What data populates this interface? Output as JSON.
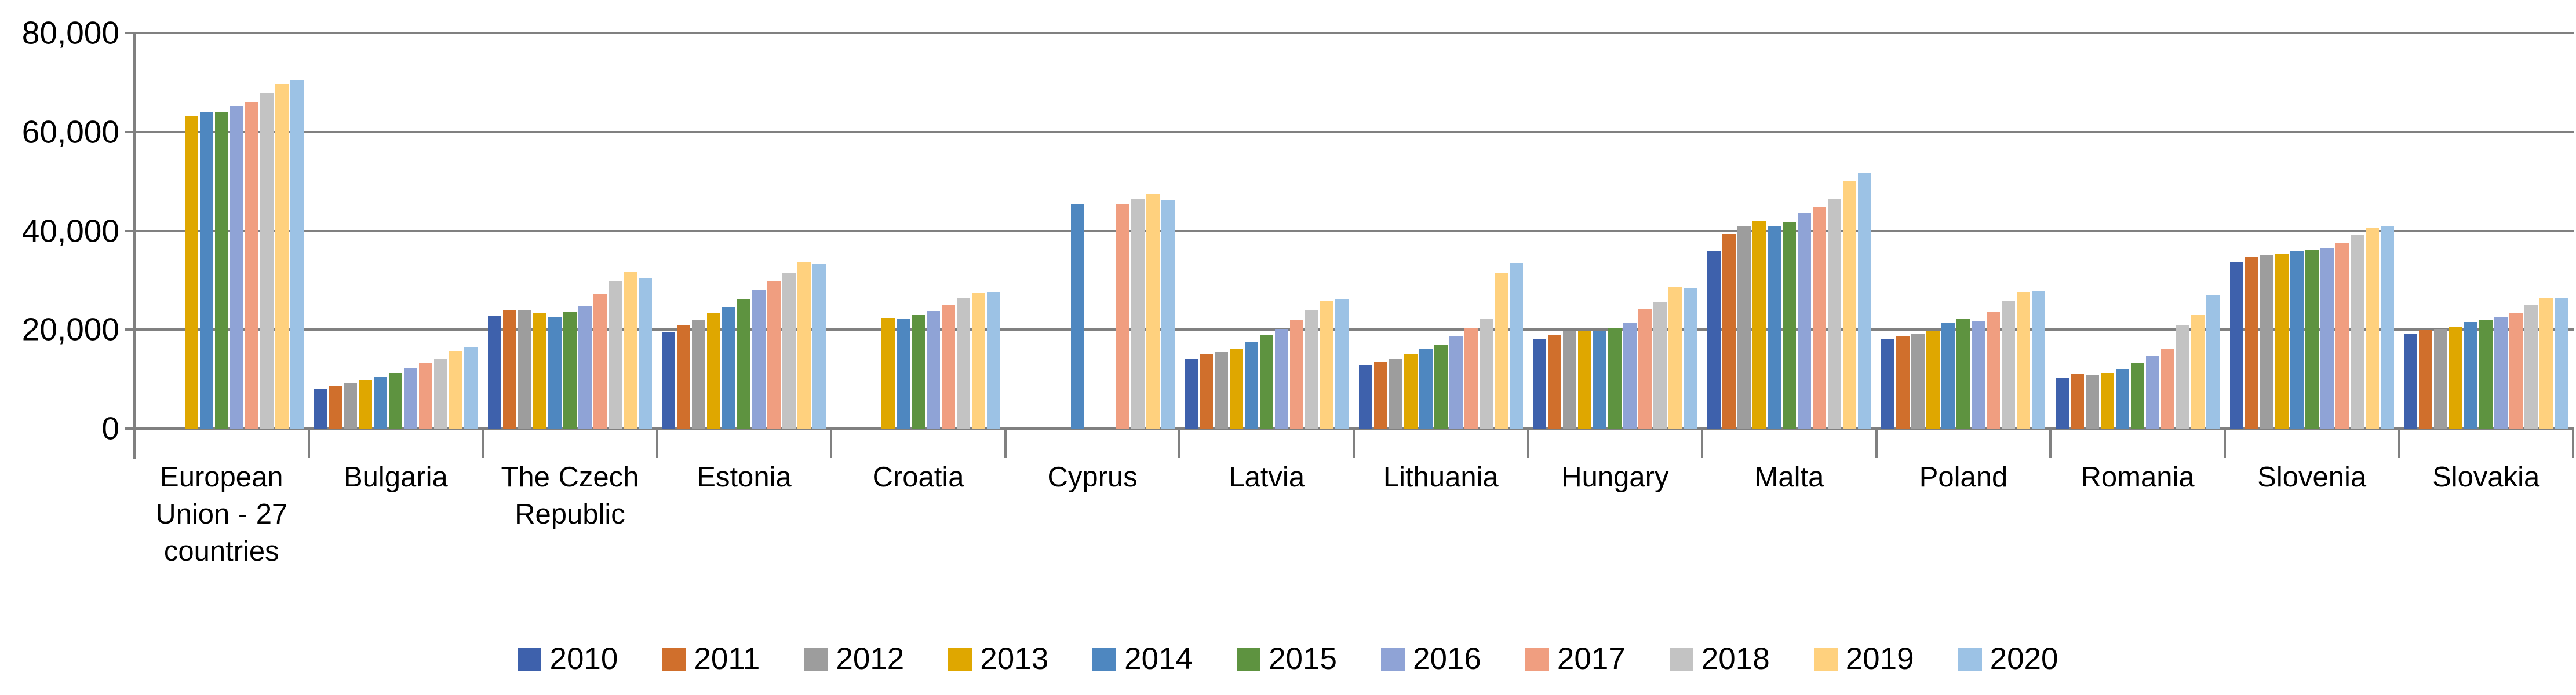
{
  "chart_data": {
    "type": "bar",
    "title": "",
    "xlabel": "",
    "ylabel": "",
    "ylim": [
      0,
      80000
    ],
    "grid": true,
    "gridline_color": "#808080",
    "background_color": "#ffffff",
    "legend_position": "bottom",
    "yticks": [
      {
        "value": 0,
        "label": "0"
      },
      {
        "value": 20000,
        "label": "20,000"
      },
      {
        "value": 40000,
        "label": "40,000"
      },
      {
        "value": 60000,
        "label": "60,000"
      },
      {
        "value": 80000,
        "label": "80,000"
      }
    ],
    "categories": [
      "European Union - 27 countries",
      "Bulgaria",
      "The Czech Republic",
      "Estonia",
      "Croatia",
      "Cyprus",
      "Latvia",
      "Lithuania",
      "Hungary",
      "Malta",
      "Poland",
      "Romania",
      "Slovenia",
      "Slovakia"
    ],
    "series": [
      {
        "name": "2010",
        "color": "#3E61AC",
        "values": [
          null,
          8000,
          22800,
          19500,
          null,
          null,
          14200,
          12900,
          18200,
          35900,
          18100,
          10300,
          33700,
          19200
        ]
      },
      {
        "name": "2011",
        "color": "#D06F2C",
        "values": [
          null,
          8600,
          24000,
          20800,
          null,
          null,
          15000,
          13500,
          18900,
          39400,
          18700,
          11100,
          34700,
          19900
        ]
      },
      {
        "name": "2012",
        "color": "#9D9D9D",
        "values": [
          null,
          9100,
          24000,
          22000,
          null,
          null,
          15500,
          14200,
          19800,
          40900,
          19200,
          10900,
          35000,
          20200
        ]
      },
      {
        "name": "2013",
        "color": "#DFA700",
        "values": [
          63100,
          9800,
          23300,
          23400,
          22400,
          null,
          16200,
          15000,
          19800,
          42100,
          19700,
          11200,
          35400,
          20600
        ]
      },
      {
        "name": "2014",
        "color": "#4E87C0",
        "values": [
          63900,
          10400,
          22600,
          24600,
          22300,
          45500,
          17600,
          16000,
          19700,
          40900,
          21300,
          12100,
          35800,
          21500
        ]
      },
      {
        "name": "2015",
        "color": "#5E9340",
        "values": [
          64100,
          11300,
          23500,
          26100,
          23000,
          null,
          19000,
          16900,
          20400,
          41800,
          22100,
          13300,
          36100,
          21900
        ]
      },
      {
        "name": "2016",
        "color": "#8FA3D6",
        "values": [
          65200,
          12200,
          24800,
          28100,
          23800,
          null,
          20200,
          18600,
          21400,
          43600,
          21800,
          14700,
          36600,
          22600
        ]
      },
      {
        "name": "2017",
        "color": "#F09E80",
        "values": [
          66100,
          13200,
          27200,
          29900,
          25000,
          45300,
          21900,
          20400,
          24100,
          44800,
          23700,
          16000,
          37600,
          23400
        ]
      },
      {
        "name": "2018",
        "color": "#C3C3C3",
        "values": [
          67900,
          14100,
          29900,
          31500,
          26500,
          46400,
          24000,
          22300,
          25600,
          46500,
          25800,
          21000,
          39100,
          24900
        ]
      },
      {
        "name": "2019",
        "color": "#FFD17E",
        "values": [
          69700,
          15700,
          31600,
          33700,
          27400,
          47400,
          25800,
          31400,
          28700,
          50100,
          27500,
          22900,
          40500,
          26300
        ]
      },
      {
        "name": "2020",
        "color": "#9CC2E5",
        "values": [
          70500,
          16500,
          30500,
          33300,
          27600,
          46300,
          26100,
          33500,
          28500,
          51700,
          27800,
          27100,
          40900,
          26500
        ]
      }
    ]
  }
}
